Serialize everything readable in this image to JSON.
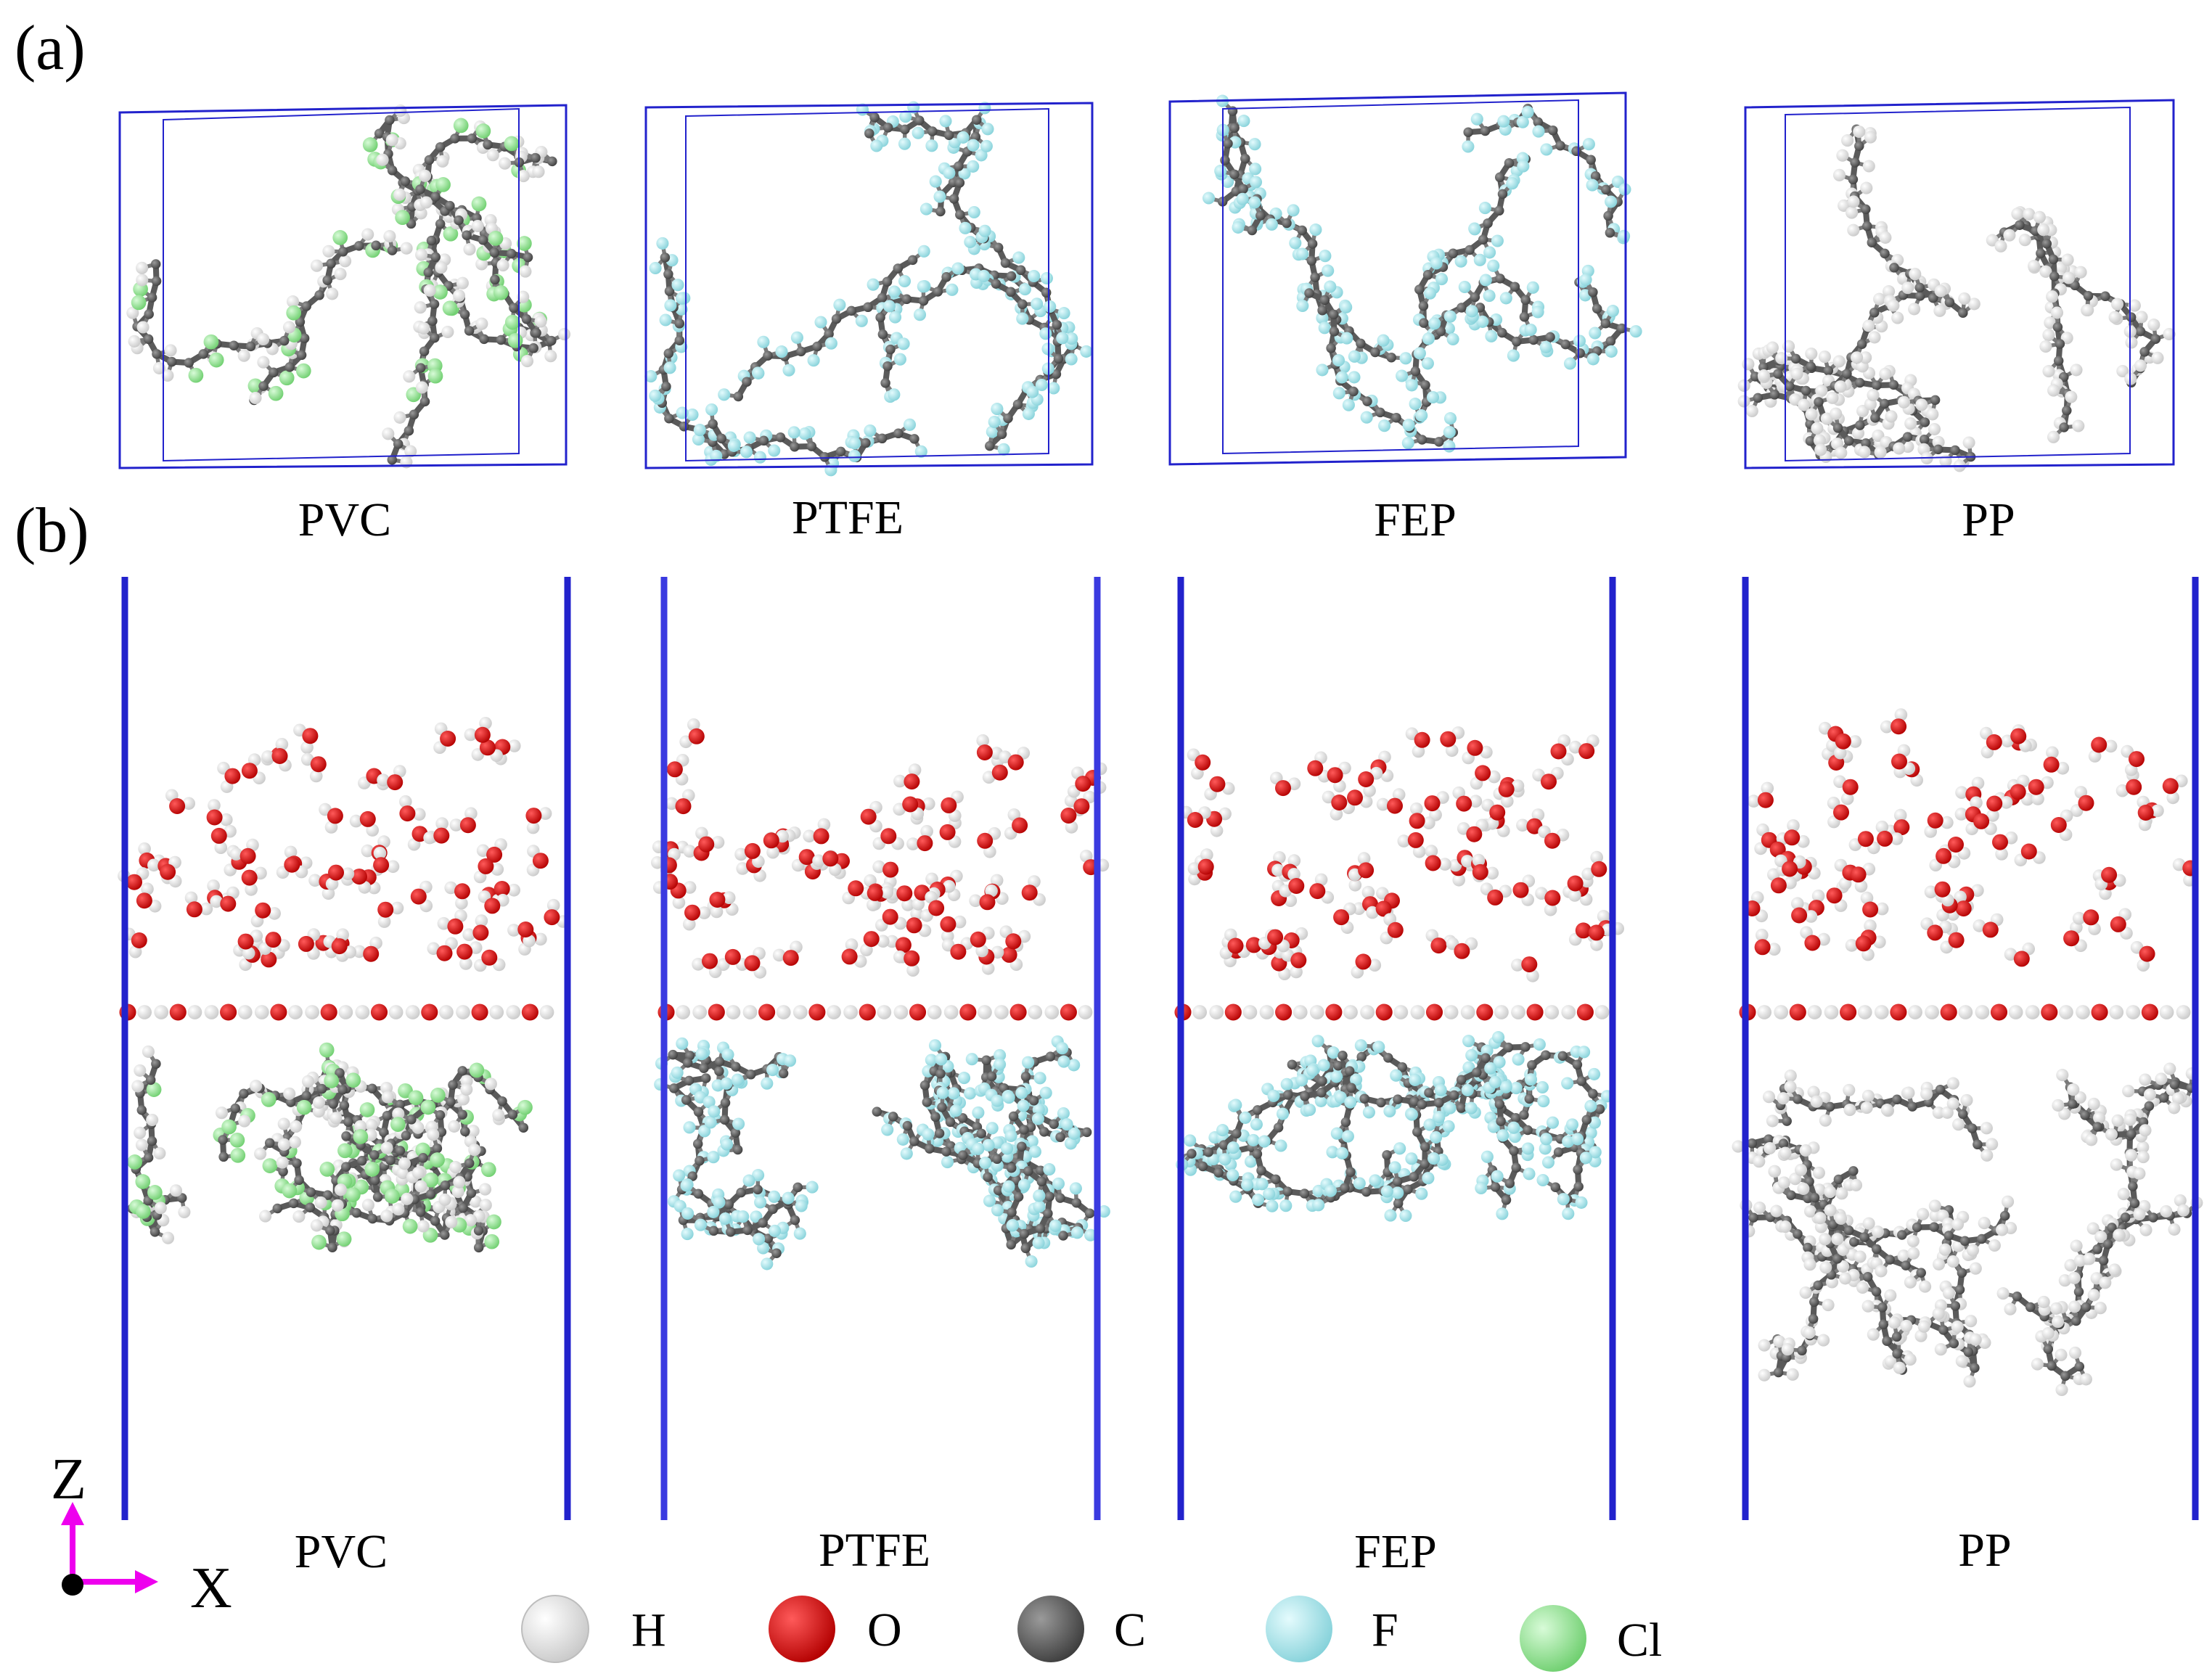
{
  "panel_a": {
    "label": "(a)",
    "materials": [
      {
        "name": "PVC",
        "color": "#9ad89a"
      },
      {
        "name": "PTFE",
        "color": "#a8e8ec"
      },
      {
        "name": "FEP",
        "color": "#a8e8ec"
      },
      {
        "name": "PP",
        "color": "#efefef"
      }
    ]
  },
  "panel_b": {
    "label": "(b)",
    "materials": [
      {
        "name": "PVC",
        "color": "#9ad89a"
      },
      {
        "name": "PTFE",
        "color": "#a8e8ec"
      },
      {
        "name": "FEP",
        "color": "#a8e8ec"
      },
      {
        "name": "PP",
        "color": "#efefef"
      }
    ]
  },
  "axes": {
    "z": "Z",
    "x": "X",
    "color": "#ee00ee"
  },
  "legend": [
    {
      "symbol": "H",
      "color": "#f2f2f2"
    },
    {
      "symbol": "O",
      "color": "#e60000"
    },
    {
      "symbol": "C",
      "color": "#6a6a6a"
    },
    {
      "symbol": "F",
      "color": "#aee8ee"
    },
    {
      "symbol": "Cl",
      "color": "#9be79b"
    }
  ],
  "colors": {
    "cell_edge": "#2222cc",
    "oxygen": "#e60000",
    "hydrogen": "#f2f2f2",
    "carbon": "#6a6a6a"
  }
}
